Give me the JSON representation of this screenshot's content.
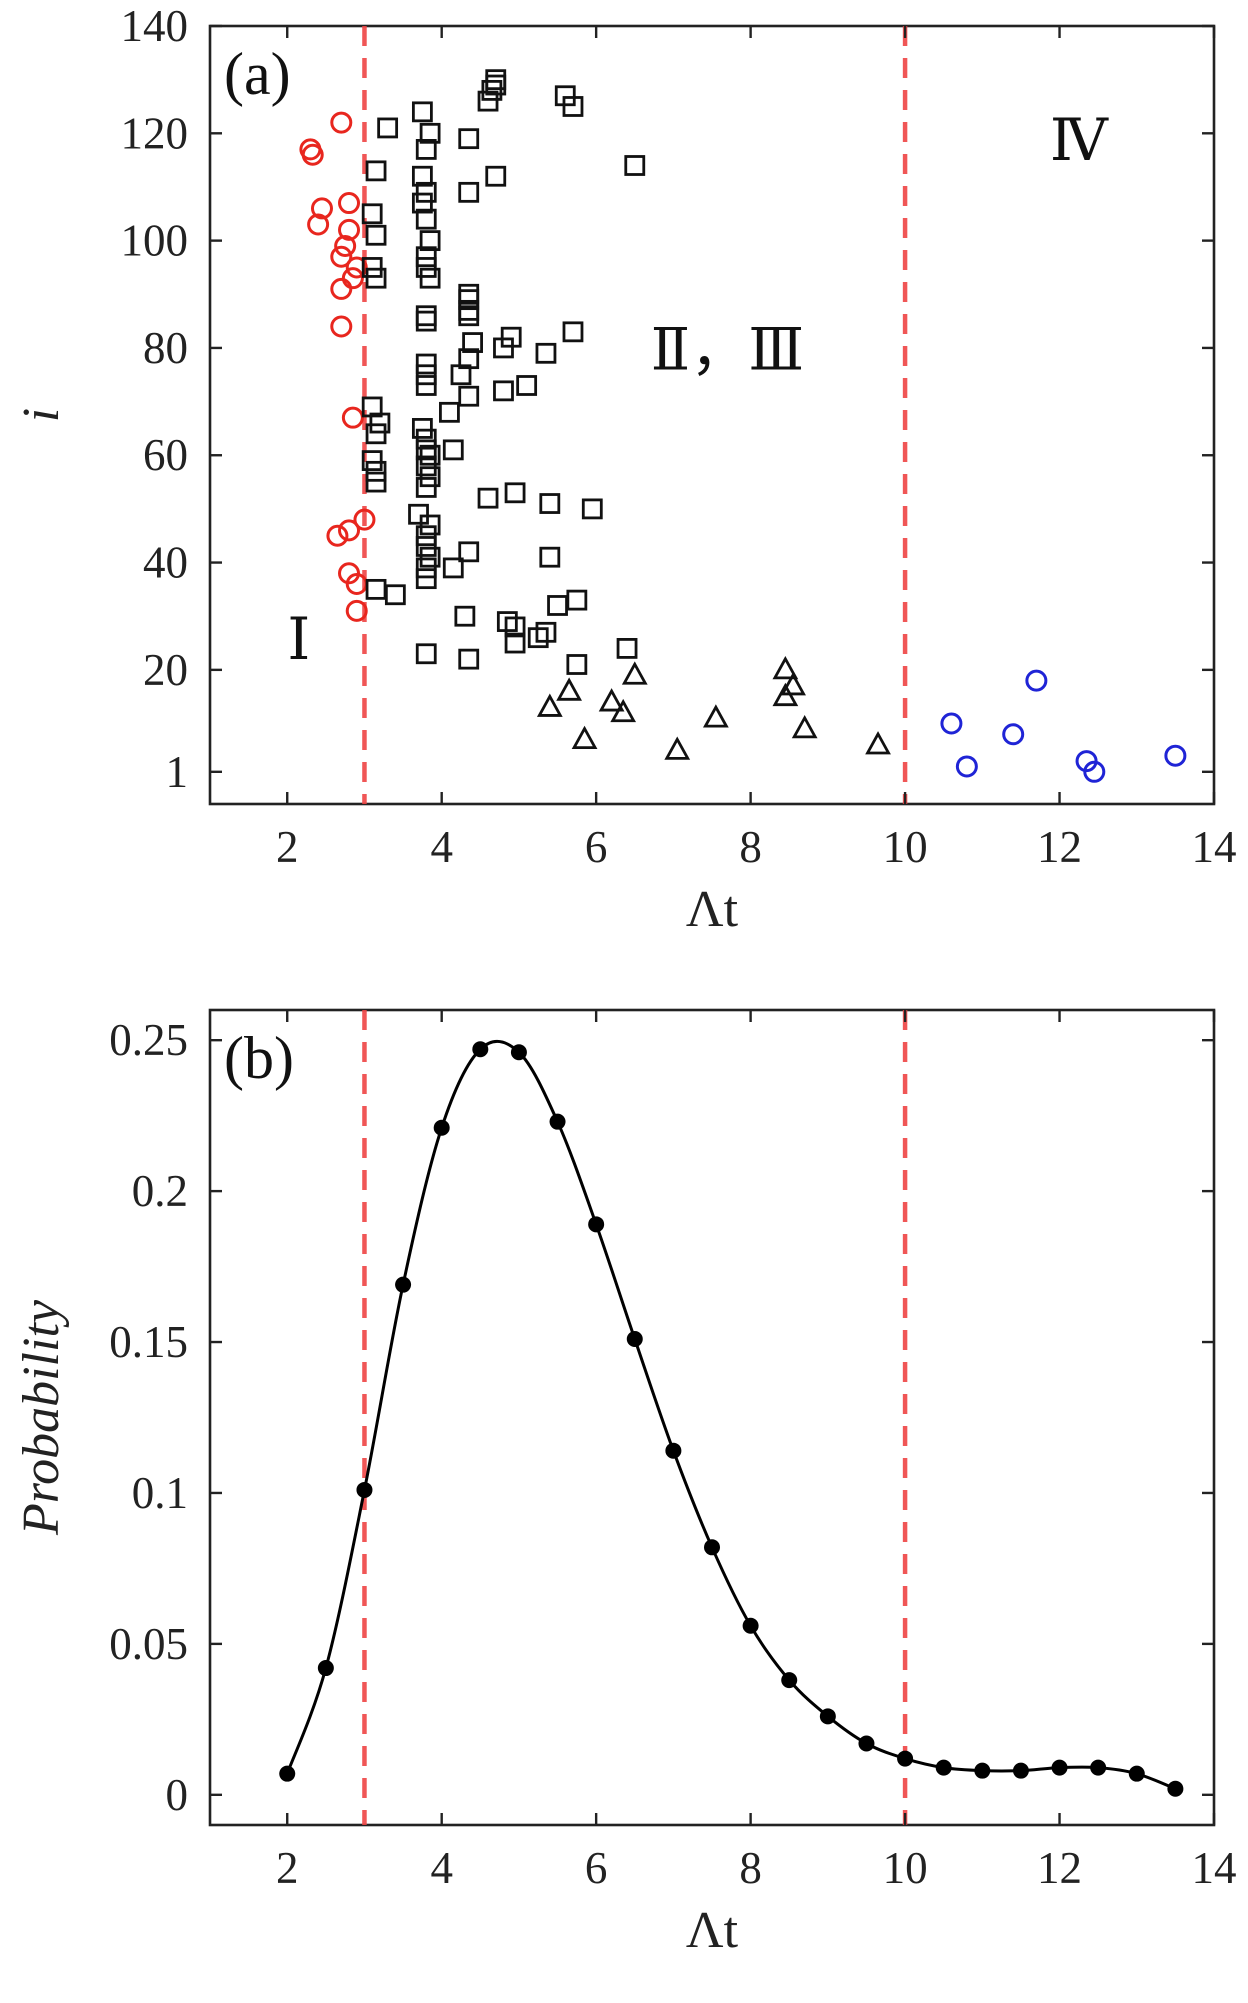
{
  "chart_data": [
    {
      "id": "a",
      "type": "scatter",
      "panel_label": "(a)",
      "xlabel": "Λt",
      "ylabel": "i",
      "xlim": [
        1,
        14
      ],
      "ylim": [
        -5,
        140
      ],
      "xticks": [
        2,
        4,
        6,
        8,
        10,
        12,
        14
      ],
      "yticks": [
        1,
        20,
        40,
        60,
        80,
        100,
        120,
        140
      ],
      "threshold_lines": [
        3,
        10
      ],
      "threshold_color": "#ef4444",
      "region_labels": [
        {
          "text": "Ⅰ",
          "x": 2.15,
          "y": 22
        },
        {
          "text": "Ⅱ，Ⅲ",
          "x": 7.7,
          "y": 76
        },
        {
          "text": "Ⅳ",
          "x": 12.25,
          "y": 115
        }
      ],
      "series": [
        {
          "name": "Region I",
          "marker": "circle",
          "color": "#e8261e",
          "points": [
            [
              2.3,
              117
            ],
            [
              2.33,
              116
            ],
            [
              2.7,
              122
            ],
            [
              2.45,
              106
            ],
            [
              2.4,
              103
            ],
            [
              2.8,
              107
            ],
            [
              2.8,
              102
            ],
            [
              2.75,
              99
            ],
            [
              2.7,
              97
            ],
            [
              2.9,
              95
            ],
            [
              2.7,
              91
            ],
            [
              2.85,
              93
            ],
            [
              2.7,
              84
            ],
            [
              2.85,
              67
            ],
            [
              2.65,
              45
            ],
            [
              2.8,
              46
            ],
            [
              3.0,
              48
            ],
            [
              2.8,
              38
            ],
            [
              2.9,
              36
            ],
            [
              2.9,
              31
            ]
          ]
        },
        {
          "name": "Regions II, III (squares)",
          "marker": "square",
          "color": "#111111",
          "points": [
            [
              3.75,
              124
            ],
            [
              3.3,
              121
            ],
            [
              3.85,
              120
            ],
            [
              3.15,
              113
            ],
            [
              3.8,
              117
            ],
            [
              3.75,
              112
            ],
            [
              3.8,
              109
            ],
            [
              3.75,
              107
            ],
            [
              3.8,
              104
            ],
            [
              3.1,
              105
            ],
            [
              3.85,
              100
            ],
            [
              3.15,
              101
            ],
            [
              3.8,
              97
            ],
            [
              3.1,
              95
            ],
            [
              3.8,
              95
            ],
            [
              3.85,
              93
            ],
            [
              3.15,
              93
            ],
            [
              3.8,
              85
            ],
            [
              3.8,
              86
            ],
            [
              3.8,
              77
            ],
            [
              3.8,
              75
            ],
            [
              3.8,
              73
            ],
            [
              3.75,
              65
            ],
            [
              3.8,
              63
            ],
            [
              3.8,
              61
            ],
            [
              3.85,
              60
            ],
            [
              3.8,
              58
            ],
            [
              3.85,
              56
            ],
            [
              3.8,
              54
            ],
            [
              3.7,
              49
            ],
            [
              3.85,
              47
            ],
            [
              3.8,
              45
            ],
            [
              3.8,
              43
            ],
            [
              3.85,
              41
            ],
            [
              3.8,
              39
            ],
            [
              3.8,
              37
            ],
            [
              3.1,
              69
            ],
            [
              3.2,
              66
            ],
            [
              3.15,
              64
            ],
            [
              3.1,
              59
            ],
            [
              3.15,
              57
            ],
            [
              3.15,
              55
            ],
            [
              3.15,
              35
            ],
            [
              3.4,
              34
            ],
            [
              3.8,
              23
            ],
            [
              4.35,
              119
            ],
            [
              4.35,
              109
            ],
            [
              4.1,
              68
            ],
            [
              4.15,
              61
            ],
            [
              4.15,
              39
            ],
            [
              4.35,
              90
            ],
            [
              4.35,
              89
            ],
            [
              4.35,
              87
            ],
            [
              4.35,
              86
            ],
            [
              4.4,
              81
            ],
            [
              4.35,
              78
            ],
            [
              4.25,
              75
            ],
            [
              4.35,
              71
            ],
            [
              4.35,
              42
            ],
            [
              4.3,
              30
            ],
            [
              4.35,
              22
            ],
            [
              4.6,
              126
            ],
            [
              4.65,
              128
            ],
            [
              4.7,
              129
            ],
            [
              4.7,
              130
            ],
            [
              4.7,
              112
            ],
            [
              4.6,
              52
            ],
            [
              4.8,
              80
            ],
            [
              4.9,
              82
            ],
            [
              4.8,
              72
            ],
            [
              4.95,
              53
            ],
            [
              5.1,
              73
            ],
            [
              4.85,
              29
            ],
            [
              4.95,
              28
            ],
            [
              4.95,
              25
            ],
            [
              5.25,
              26
            ],
            [
              5.35,
              27
            ],
            [
              5.35,
              79
            ],
            [
              5.4,
              51
            ],
            [
              5.4,
              41
            ],
            [
              5.5,
              32
            ],
            [
              5.6,
              127
            ],
            [
              5.7,
              125
            ],
            [
              5.7,
              83
            ],
            [
              5.75,
              33
            ],
            [
              5.75,
              21
            ],
            [
              5.95,
              50
            ],
            [
              6.4,
              24
            ],
            [
              6.5,
              114
            ]
          ]
        },
        {
          "name": "Regions II, III (triangles)",
          "marker": "triangle",
          "color": "#111111",
          "points": [
            [
              5.4,
              13
            ],
            [
              5.65,
              16
            ],
            [
              5.85,
              7
            ],
            [
              6.2,
              14
            ],
            [
              6.35,
              12
            ],
            [
              6.5,
              19
            ],
            [
              7.05,
              5
            ],
            [
              7.55,
              11
            ],
            [
              8.45,
              20
            ],
            [
              8.45,
              15
            ],
            [
              8.55,
              17
            ],
            [
              8.7,
              9
            ],
            [
              9.65,
              6
            ]
          ]
        },
        {
          "name": "Region IV",
          "marker": "circle",
          "color": "#1f24d6",
          "points": [
            [
              10.6,
              10
            ],
            [
              10.8,
              2
            ],
            [
              11.4,
              8
            ],
            [
              11.7,
              18
            ],
            [
              12.35,
              3
            ],
            [
              12.45,
              1
            ],
            [
              13.5,
              4
            ]
          ]
        }
      ]
    },
    {
      "id": "b",
      "type": "line",
      "panel_label": "(b)",
      "xlabel": "Λt",
      "ylabel": "Probability",
      "xlim": [
        1,
        14
      ],
      "ylim": [
        -0.01,
        0.26
      ],
      "xticks": [
        2,
        4,
        6,
        8,
        10,
        12,
        14
      ],
      "yticks": [
        0,
        0.05,
        0.1,
        0.15,
        0.2,
        0.25
      ],
      "ytick_labels": [
        "0",
        "0.05",
        "0.1",
        "0.15",
        "0.2",
        "0.25"
      ],
      "threshold_lines": [
        3,
        10
      ],
      "threshold_color": "#ef4444",
      "series": [
        {
          "name": "Probability",
          "color": "#000000",
          "x": [
            2,
            2.5,
            3,
            3.5,
            4,
            4.5,
            5,
            5.5,
            6,
            6.5,
            7,
            7.5,
            8,
            8.5,
            9,
            9.5,
            10,
            10.5,
            11,
            11.5,
            12,
            12.5,
            13,
            13.5
          ],
          "y": [
            0.007,
            0.042,
            0.101,
            0.169,
            0.221,
            0.247,
            0.246,
            0.223,
            0.189,
            0.151,
            0.114,
            0.082,
            0.056,
            0.038,
            0.026,
            0.017,
            0.012,
            0.009,
            0.008,
            0.008,
            0.009,
            0.009,
            0.007,
            0.002
          ]
        }
      ]
    }
  ]
}
